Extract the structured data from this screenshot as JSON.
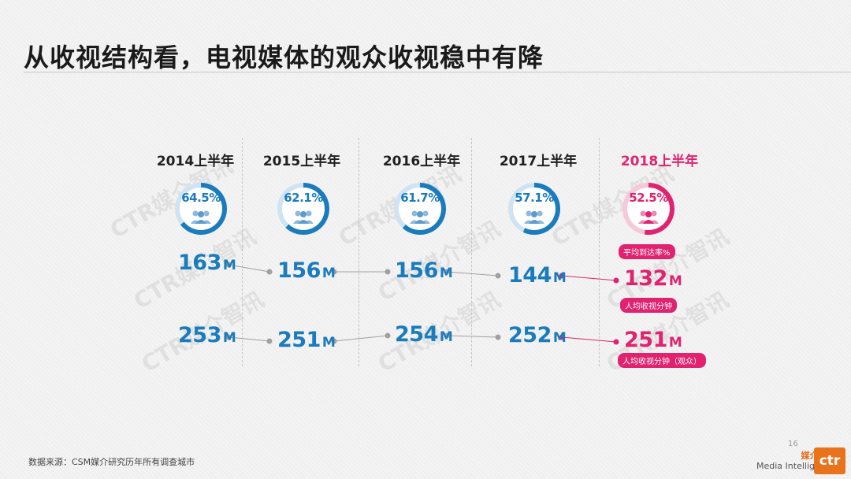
{
  "title": "从收视结构看，电视媒体的观众收视稳中有降",
  "watermark_text": "CTR媒介智讯",
  "columns": [
    {
      "year": "2014上半年",
      "reach_pct": "64.5%",
      "avg_minutes": "163",
      "viewer_minutes": "253"
    },
    {
      "year": "2015上半年",
      "reach_pct": "62.1%",
      "avg_minutes": "156",
      "viewer_minutes": "251"
    },
    {
      "year": "2016上半年",
      "reach_pct": "61.7%",
      "avg_minutes": "156",
      "viewer_minutes": "254"
    },
    {
      "year": "2017上半年",
      "reach_pct": "57.1%",
      "avg_minutes": "144",
      "viewer_minutes": "252"
    },
    {
      "year": "2018上半年",
      "reach_pct": "52.5%",
      "avg_minutes": "132",
      "viewer_minutes": "251"
    }
  ],
  "unit": "M",
  "labels": {
    "reach": "平均到达率%",
    "avg_minutes": "人均收视分钟",
    "viewer_minutes": "人均收视分钟（观众）"
  },
  "footer": "数据来源：CSM媒介研究历年所有调查城市",
  "page_number": "16",
  "logo": {
    "cn": "媒介智讯",
    "en": "Media Intelligence",
    "mark": "ctr"
  },
  "colors": {
    "blue": "#1a7bbd",
    "pink": "#e0226f",
    "ring_light": "#cfe3f2"
  }
}
